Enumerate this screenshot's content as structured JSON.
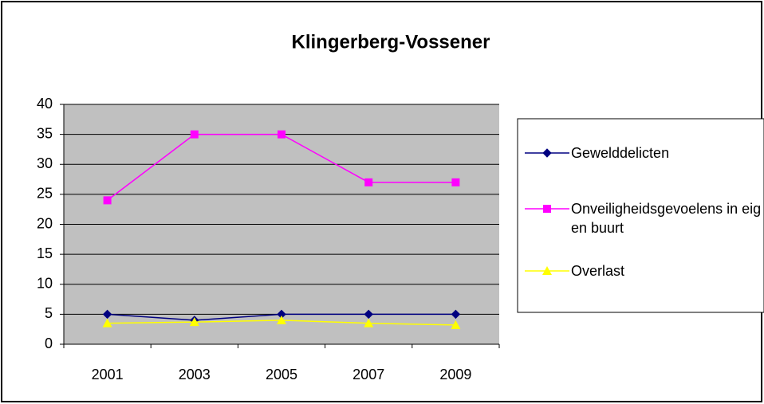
{
  "chart_data": {
    "type": "line",
    "title": "Klingerberg-Vossener",
    "categories": [
      "2001",
      "2003",
      "2005",
      "2007",
      "2009"
    ],
    "series": [
      {
        "name": "Gewelddelicten",
        "color": "#000080",
        "marker": "diamond",
        "values": [
          5,
          4,
          5,
          5,
          5
        ]
      },
      {
        "name": "Onveiligheidsgevoelens in eigen buurt",
        "color": "#ff00ff",
        "marker": "square",
        "values": [
          24,
          35,
          35,
          27,
          27
        ]
      },
      {
        "name": "Overlast",
        "color": "#ffff00",
        "marker": "triangle",
        "values": [
          3.5,
          3.7,
          4,
          3.5,
          3.2
        ]
      }
    ],
    "ylim": [
      0,
      40
    ],
    "yticks": [
      0,
      5,
      10,
      15,
      20,
      25,
      30,
      35,
      40
    ],
    "grid": true,
    "plot_background": "#c0c0c0",
    "legend": "right"
  }
}
